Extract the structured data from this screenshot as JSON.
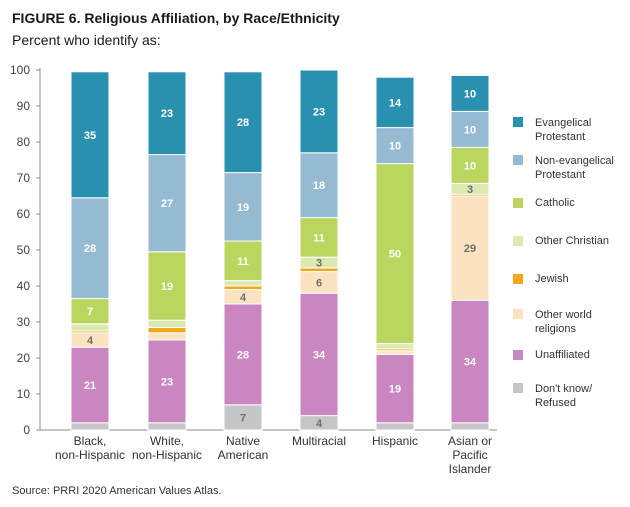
{
  "header": {
    "title": "FIGURE 6.  Religious Affiliation, by Race/Ethnicity",
    "subtitle": "Percent who identify as:"
  },
  "footer": {
    "source": "Source: PRRI 2020 American Values Atlas."
  },
  "chart_data": {
    "type": "bar",
    "stacked": true,
    "title": "FIGURE 6.  Religious Affiliation, by Race/Ethnicity",
    "subtitle": "Percent who identify as:",
    "ylim": [
      0,
      100
    ],
    "yticks": [
      0,
      10,
      20,
      30,
      40,
      50,
      60,
      70,
      80,
      90,
      100
    ],
    "grid": false,
    "legend_position": "right",
    "categories": [
      [
        "Black,",
        "non-Hispanic"
      ],
      [
        "White,",
        "non-Hispanic"
      ],
      [
        "Native",
        "American"
      ],
      [
        "Multiracial"
      ],
      [
        "Hispanic"
      ],
      [
        "Asian or",
        "Pacific",
        "Islander"
      ]
    ],
    "series": [
      {
        "name": "Don't know/ Refused",
        "legend_lines": [
          "Don't know/",
          "Refused"
        ],
        "color": "#c4c6c8",
        "values": [
          2,
          2,
          7,
          4,
          2,
          2
        ],
        "labels": [
          "",
          "",
          "7",
          "4",
          "",
          ""
        ]
      },
      {
        "name": "Unaffiliated",
        "legend_lines": [
          "Unaffiliated"
        ],
        "color": "#c986c1",
        "values": [
          21,
          23,
          28,
          34,
          19,
          34
        ],
        "labels": [
          "21",
          "23",
          "28",
          "34",
          "19",
          "34"
        ]
      },
      {
        "name": "Other world religions",
        "legend_lines": [
          "Other world",
          "religions"
        ],
        "color": "#fbe3c2",
        "values": [
          4,
          2,
          4,
          6,
          1,
          29
        ],
        "labels": [
          "4",
          "",
          "4",
          "6",
          "",
          "29"
        ]
      },
      {
        "name": "Jewish",
        "legend_lines": [
          "Jewish"
        ],
        "color": "#f2a81d",
        "values": [
          0.5,
          1.5,
          1,
          1,
          0.5,
          0.5
        ],
        "labels": [
          "",
          "",
          "",
          "",
          "",
          ""
        ]
      },
      {
        "name": "Other Christian",
        "legend_lines": [
          "Other Christian"
        ],
        "color": "#dce9b0",
        "values": [
          2,
          2,
          1.5,
          3,
          1.5,
          3
        ],
        "labels": [
          "",
          "",
          "",
          "3",
          "",
          "3"
        ]
      },
      {
        "name": "Catholic",
        "legend_lines": [
          "Catholic"
        ],
        "color": "#bbd65f",
        "values": [
          7,
          19,
          11,
          11,
          50,
          10
        ],
        "labels": [
          "7",
          "19",
          "11",
          "11",
          "50",
          "10"
        ]
      },
      {
        "name": "Non-evangelical Protestant",
        "legend_lines": [
          "Non-evangelical",
          "Protestant"
        ],
        "color": "#95bad1",
        "values": [
          28,
          27,
          19,
          18,
          10,
          10
        ],
        "labels": [
          "28",
          "27",
          "19",
          "18",
          "10",
          "10"
        ]
      },
      {
        "name": "Evangelical Protestant",
        "legend_lines": [
          "Evangelical",
          "Protestant"
        ],
        "color": "#2a90b0",
        "values": [
          35,
          23,
          28,
          23,
          14,
          10
        ],
        "labels": [
          "35",
          "23",
          "28",
          "23",
          "14",
          "10"
        ]
      }
    ]
  }
}
